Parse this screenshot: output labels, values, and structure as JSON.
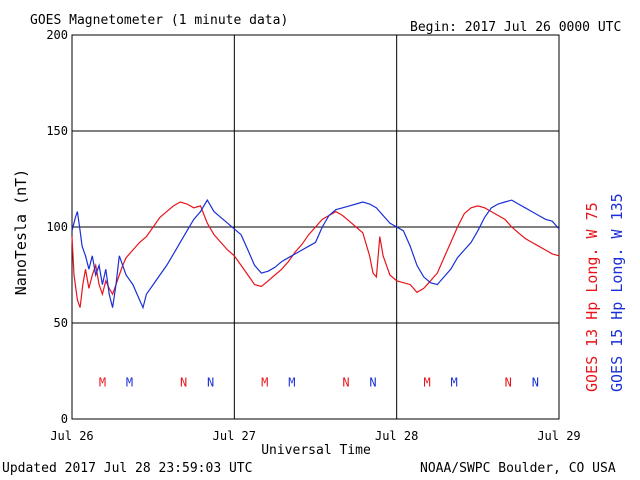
{
  "header": {
    "title": "GOES Magnetometer (1 minute data)",
    "begin": "Begin:  2017 Jul 26 0000 UTC"
  },
  "footer": {
    "updated": "Updated 2017 Jul 28 23:59:03 UTC",
    "credit": "NOAA/SWPC Boulder, CO USA"
  },
  "colors": {
    "goes13": "#e8141b",
    "goes15": "#1a2fd6"
  },
  "chart_data": {
    "type": "line",
    "title": "GOES Magnetometer (1 minute data)",
    "xlabel": "Universal Time",
    "ylabel": "NanoTesla (nT)",
    "ylim": [
      0,
      200
    ],
    "xlim_hours": [
      0,
      72
    ],
    "y_ticks": [
      0,
      50,
      100,
      150,
      200
    ],
    "x_ticks": [
      {
        "hour": 0,
        "label": "Jul 26"
      },
      {
        "hour": 24,
        "label": "Jul 27"
      },
      {
        "hour": 48,
        "label": "Jul 28"
      },
      {
        "hour": 72,
        "label": "Jul 29"
      }
    ],
    "grid": true,
    "legend_placement": "right, vertical",
    "series": [
      {
        "name": "GOES 13 Hp  Long. W 75",
        "color": "#e8141b",
        "points": [
          [
            0,
            95
          ],
          [
            0.3,
            75
          ],
          [
            0.8,
            62
          ],
          [
            1.2,
            58
          ],
          [
            1.6,
            70
          ],
          [
            2.0,
            78
          ],
          [
            2.5,
            68
          ],
          [
            3.0,
            75
          ],
          [
            3.5,
            80
          ],
          [
            4.0,
            70
          ],
          [
            4.5,
            65
          ],
          [
            5.0,
            72
          ],
          [
            5.5,
            68
          ],
          [
            6.0,
            65
          ],
          [
            6.5,
            70
          ],
          [
            7.0,
            75
          ],
          [
            7.5,
            80
          ],
          [
            8.0,
            84
          ],
          [
            9.0,
            88
          ],
          [
            10.0,
            92
          ],
          [
            11.0,
            95
          ],
          [
            12.0,
            100
          ],
          [
            13.0,
            105
          ],
          [
            14.0,
            108
          ],
          [
            15.0,
            111
          ],
          [
            16.0,
            113
          ],
          [
            17.0,
            112
          ],
          [
            18.0,
            110
          ],
          [
            19.0,
            111
          ],
          [
            20.0,
            102
          ],
          [
            21.0,
            96
          ],
          [
            22.0,
            92
          ],
          [
            23.0,
            88
          ],
          [
            24.0,
            85
          ],
          [
            25.0,
            80
          ],
          [
            26.0,
            75
          ],
          [
            27.0,
            70
          ],
          [
            28.0,
            69
          ],
          [
            29.0,
            72
          ],
          [
            30.0,
            75
          ],
          [
            31.0,
            78
          ],
          [
            32.0,
            82
          ],
          [
            33.0,
            87
          ],
          [
            34.0,
            91
          ],
          [
            35.0,
            96
          ],
          [
            36.0,
            100
          ],
          [
            37.0,
            104
          ],
          [
            38.0,
            106
          ],
          [
            39.0,
            108
          ],
          [
            40.0,
            106
          ],
          [
            41.0,
            103
          ],
          [
            42.0,
            100
          ],
          [
            43.0,
            97
          ],
          [
            44.0,
            85
          ],
          [
            44.5,
            76
          ],
          [
            45.0,
            74
          ],
          [
            45.5,
            95
          ],
          [
            46.0,
            85
          ],
          [
            46.5,
            80
          ],
          [
            47.0,
            75
          ],
          [
            48.0,
            72
          ],
          [
            49.0,
            71
          ],
          [
            50.0,
            70
          ],
          [
            51.0,
            66
          ],
          [
            52.0,
            68
          ],
          [
            53.0,
            72
          ],
          [
            54.0,
            76
          ],
          [
            55.0,
            84
          ],
          [
            56.0,
            92
          ],
          [
            57.0,
            100
          ],
          [
            58.0,
            107
          ],
          [
            59.0,
            110
          ],
          [
            60.0,
            111
          ],
          [
            61.0,
            110
          ],
          [
            62.0,
            108
          ],
          [
            63.0,
            106
          ],
          [
            64.0,
            104
          ],
          [
            65.0,
            100
          ],
          [
            66.0,
            97
          ],
          [
            67.0,
            94
          ],
          [
            68.0,
            92
          ],
          [
            69.0,
            90
          ],
          [
            70.0,
            88
          ],
          [
            71.0,
            86
          ],
          [
            72.0,
            85
          ]
        ]
      },
      {
        "name": "GOES 15 Hp  Long. W 135",
        "color": "#1a2fd6",
        "points": [
          [
            0,
            98
          ],
          [
            0.5,
            105
          ],
          [
            0.8,
            108
          ],
          [
            1.2,
            98
          ],
          [
            1.5,
            90
          ],
          [
            2.0,
            85
          ],
          [
            2.5,
            78
          ],
          [
            3.0,
            85
          ],
          [
            3.5,
            75
          ],
          [
            4.0,
            80
          ],
          [
            4.5,
            70
          ],
          [
            5.0,
            78
          ],
          [
            5.5,
            65
          ],
          [
            6.0,
            58
          ],
          [
            6.5,
            70
          ],
          [
            7.0,
            85
          ],
          [
            7.5,
            80
          ],
          [
            8.0,
            75
          ],
          [
            9.0,
            70
          ],
          [
            10.0,
            62
          ],
          [
            10.5,
            58
          ],
          [
            11.0,
            65
          ],
          [
            12.0,
            70
          ],
          [
            13.0,
            75
          ],
          [
            14.0,
            80
          ],
          [
            15.0,
            86
          ],
          [
            16.0,
            92
          ],
          [
            17.0,
            98
          ],
          [
            18.0,
            104
          ],
          [
            19.0,
            108
          ],
          [
            20.0,
            114
          ],
          [
            21.0,
            108
          ],
          [
            22.0,
            105
          ],
          [
            23.0,
            102
          ],
          [
            24.0,
            99
          ],
          [
            25.0,
            96
          ],
          [
            26.0,
            88
          ],
          [
            27.0,
            80
          ],
          [
            28.0,
            76
          ],
          [
            29.0,
            77
          ],
          [
            30.0,
            79
          ],
          [
            31.0,
            82
          ],
          [
            32.0,
            84
          ],
          [
            33.0,
            86
          ],
          [
            34.0,
            88
          ],
          [
            35.0,
            90
          ],
          [
            36.0,
            92
          ],
          [
            37.0,
            100
          ],
          [
            38.0,
            106
          ],
          [
            39.0,
            109
          ],
          [
            40.0,
            110
          ],
          [
            41.0,
            111
          ],
          [
            42.0,
            112
          ],
          [
            43.0,
            113
          ],
          [
            44.0,
            112
          ],
          [
            45.0,
            110
          ],
          [
            46.0,
            106
          ],
          [
            47.0,
            102
          ],
          [
            48.0,
            100
          ],
          [
            49.0,
            98
          ],
          [
            50.0,
            90
          ],
          [
            51.0,
            80
          ],
          [
            52.0,
            74
          ],
          [
            53.0,
            71
          ],
          [
            54.0,
            70
          ],
          [
            55.0,
            74
          ],
          [
            56.0,
            78
          ],
          [
            57.0,
            84
          ],
          [
            58.0,
            88
          ],
          [
            59.0,
            92
          ],
          [
            60.0,
            98
          ],
          [
            61.0,
            105
          ],
          [
            62.0,
            110
          ],
          [
            63.0,
            112
          ],
          [
            64.0,
            113
          ],
          [
            65.0,
            114
          ],
          [
            66.0,
            112
          ],
          [
            67.0,
            110
          ],
          [
            68.0,
            108
          ],
          [
            69.0,
            106
          ],
          [
            70.0,
            104
          ],
          [
            71.0,
            103
          ],
          [
            72.0,
            99
          ]
        ]
      }
    ],
    "markers": [
      {
        "label": "M",
        "hour": 4.5,
        "series": "goes13"
      },
      {
        "label": "M",
        "hour": 8.5,
        "series": "goes15"
      },
      {
        "label": "N",
        "hour": 16.5,
        "series": "goes13"
      },
      {
        "label": "N",
        "hour": 20.5,
        "series": "goes15"
      },
      {
        "label": "M",
        "hour": 28.5,
        "series": "goes13"
      },
      {
        "label": "M",
        "hour": 32.5,
        "series": "goes15"
      },
      {
        "label": "N",
        "hour": 40.5,
        "series": "goes13"
      },
      {
        "label": "N",
        "hour": 44.5,
        "series": "goes15"
      },
      {
        "label": "M",
        "hour": 52.5,
        "series": "goes13"
      },
      {
        "label": "M",
        "hour": 56.5,
        "series": "goes15"
      },
      {
        "label": "N",
        "hour": 64.5,
        "series": "goes13"
      },
      {
        "label": "N",
        "hour": 68.5,
        "series": "goes15"
      }
    ],
    "marker_y": 17
  }
}
